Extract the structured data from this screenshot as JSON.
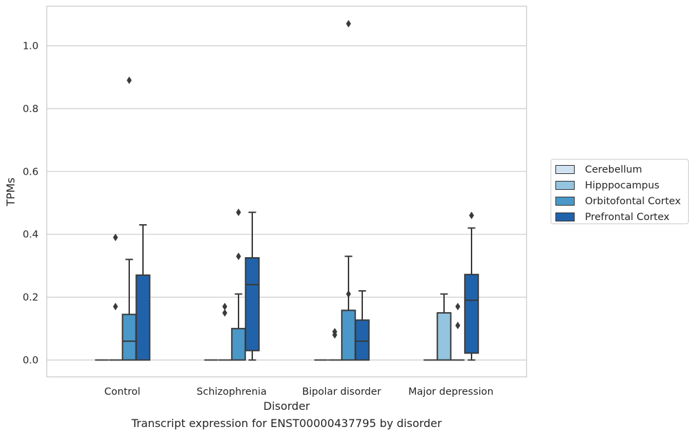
{
  "chart_data": {
    "type": "boxplot",
    "xlabel": "Disorder",
    "ylabel": "TPMs",
    "caption": "Transcript expression for ENST00000437795 by disorder",
    "categories": [
      "Control",
      "Schizophrenia",
      "Bipolar disorder",
      "Major depression"
    ],
    "ylim": [
      -0.052,
      1.13
    ],
    "yticks": [
      "0.0",
      "0.2",
      "0.4",
      "0.6",
      "0.8",
      "1.0"
    ],
    "grid": "horizontal",
    "legend_position": "right",
    "series": [
      {
        "name": "Cerebellum",
        "color": "#d0e1f2",
        "boxes": [
          {
            "q1": 0,
            "median": 0,
            "q3": 0,
            "whisker_low": 0,
            "whisker_high": 0,
            "outliers": []
          },
          {
            "q1": 0,
            "median": 0,
            "q3": 0,
            "whisker_low": 0,
            "whisker_high": 0,
            "outliers": []
          },
          {
            "q1": 0,
            "median": 0,
            "q3": 0,
            "whisker_low": 0,
            "whisker_high": 0,
            "outliers": []
          },
          {
            "q1": 0,
            "median": 0,
            "q3": 0,
            "whisker_low": 0,
            "whisker_high": 0,
            "outliers": []
          }
        ]
      },
      {
        "name": "Hipppocampus",
        "color": "#94c4df",
        "boxes": [
          {
            "q1": 0,
            "median": 0,
            "q3": 0,
            "whisker_low": 0,
            "whisker_high": 0,
            "outliers": [
              0.39,
              0.17
            ]
          },
          {
            "q1": 0,
            "median": 0,
            "q3": 0,
            "whisker_low": 0,
            "whisker_high": 0,
            "outliers": [
              0.17,
              0.15
            ]
          },
          {
            "q1": 0,
            "median": 0,
            "q3": 0,
            "whisker_low": 0,
            "whisker_high": 0,
            "outliers": [
              0.09,
              0.08
            ]
          },
          {
            "q1": 0,
            "median": 0,
            "q3": 0.15,
            "whisker_low": 0,
            "whisker_high": 0.21,
            "outliers": []
          }
        ]
      },
      {
        "name": "Orbitofontal Cortex",
        "color": "#4a98c9",
        "boxes": [
          {
            "q1": 0,
            "median": 0.06,
            "q3": 0.145,
            "whisker_low": 0,
            "whisker_high": 0.32,
            "outliers": [
              0.89
            ]
          },
          {
            "q1": 0,
            "median": 0,
            "q3": 0.1,
            "whisker_low": 0,
            "whisker_high": 0.21,
            "outliers": [
              0.47,
              0.33
            ]
          },
          {
            "q1": 0,
            "median": 0,
            "q3": 0.158,
            "whisker_low": 0,
            "whisker_high": 0.33,
            "outliers": [
              0.21,
              1.07
            ]
          },
          {
            "q1": 0,
            "median": 0,
            "q3": 0,
            "whisker_low": 0,
            "whisker_high": 0,
            "outliers": [
              0.17,
              0.11
            ]
          }
        ]
      },
      {
        "name": "Prefrontal Cortex",
        "color": "#2163aa",
        "boxes": [
          {
            "q1": 0,
            "median": 0,
            "q3": 0.27,
            "whisker_low": 0,
            "whisker_high": 0.43,
            "outliers": []
          },
          {
            "q1": 0.03,
            "median": 0.24,
            "q3": 0.325,
            "whisker_low": 0,
            "whisker_high": 0.47,
            "outliers": []
          },
          {
            "q1": 0,
            "median": 0.06,
            "q3": 0.127,
            "whisker_low": 0,
            "whisker_high": 0.22,
            "outliers": []
          },
          {
            "q1": 0.022,
            "median": 0.19,
            "q3": 0.272,
            "whisker_low": 0,
            "whisker_high": 0.42,
            "outliers": [
              0.46
            ]
          }
        ]
      }
    ]
  }
}
